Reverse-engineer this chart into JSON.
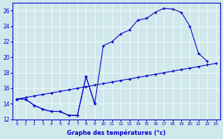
{
  "xlabel": "Graphe des températures (°c)",
  "bg_color": "#d0e8ec",
  "line_color": "#0000cc",
  "xlim": [
    -0.5,
    23.5
  ],
  "ylim": [
    12,
    27
  ],
  "yticks": [
    12,
    14,
    16,
    18,
    20,
    22,
    24,
    26
  ],
  "xticks": [
    0,
    1,
    2,
    3,
    4,
    5,
    6,
    7,
    8,
    9,
    10,
    11,
    12,
    13,
    14,
    15,
    16,
    17,
    18,
    19,
    20,
    21,
    22,
    23
  ],
  "series_main_x": [
    0,
    1,
    2,
    3,
    4,
    5,
    6,
    7,
    8,
    9,
    10,
    11,
    12,
    13,
    14,
    15,
    16,
    17,
    18,
    19,
    20,
    21,
    22
  ],
  "series_main_y": [
    14.6,
    14.6,
    13.8,
    13.3,
    13.0,
    13.0,
    12.5,
    12.5,
    17.5,
    14.0,
    21.5,
    22.0,
    23.0,
    23.5,
    24.8,
    25.0,
    25.8,
    26.3,
    26.2,
    25.8,
    24.0,
    20.5,
    19.5
  ],
  "series_dip_x": [
    0,
    1,
    2,
    3,
    4,
    5,
    6,
    7,
    8,
    9
  ],
  "series_dip_y": [
    14.6,
    14.6,
    13.8,
    13.3,
    13.0,
    13.0,
    12.5,
    12.5,
    17.5,
    14.0
  ],
  "series_diag_x": [
    0,
    1,
    2,
    3,
    4,
    5,
    6,
    7,
    8,
    9,
    10,
    11,
    12,
    13,
    14,
    15,
    16,
    17,
    18,
    19,
    20,
    21,
    22,
    23
  ],
  "series_diag_y": [
    14.6,
    14.8,
    15.0,
    15.2,
    15.4,
    15.6,
    15.8,
    16.0,
    16.2,
    16.4,
    16.6,
    16.8,
    17.0,
    17.2,
    17.4,
    17.6,
    17.8,
    18.0,
    18.2,
    18.4,
    18.6,
    18.8,
    19.0,
    19.2
  ]
}
